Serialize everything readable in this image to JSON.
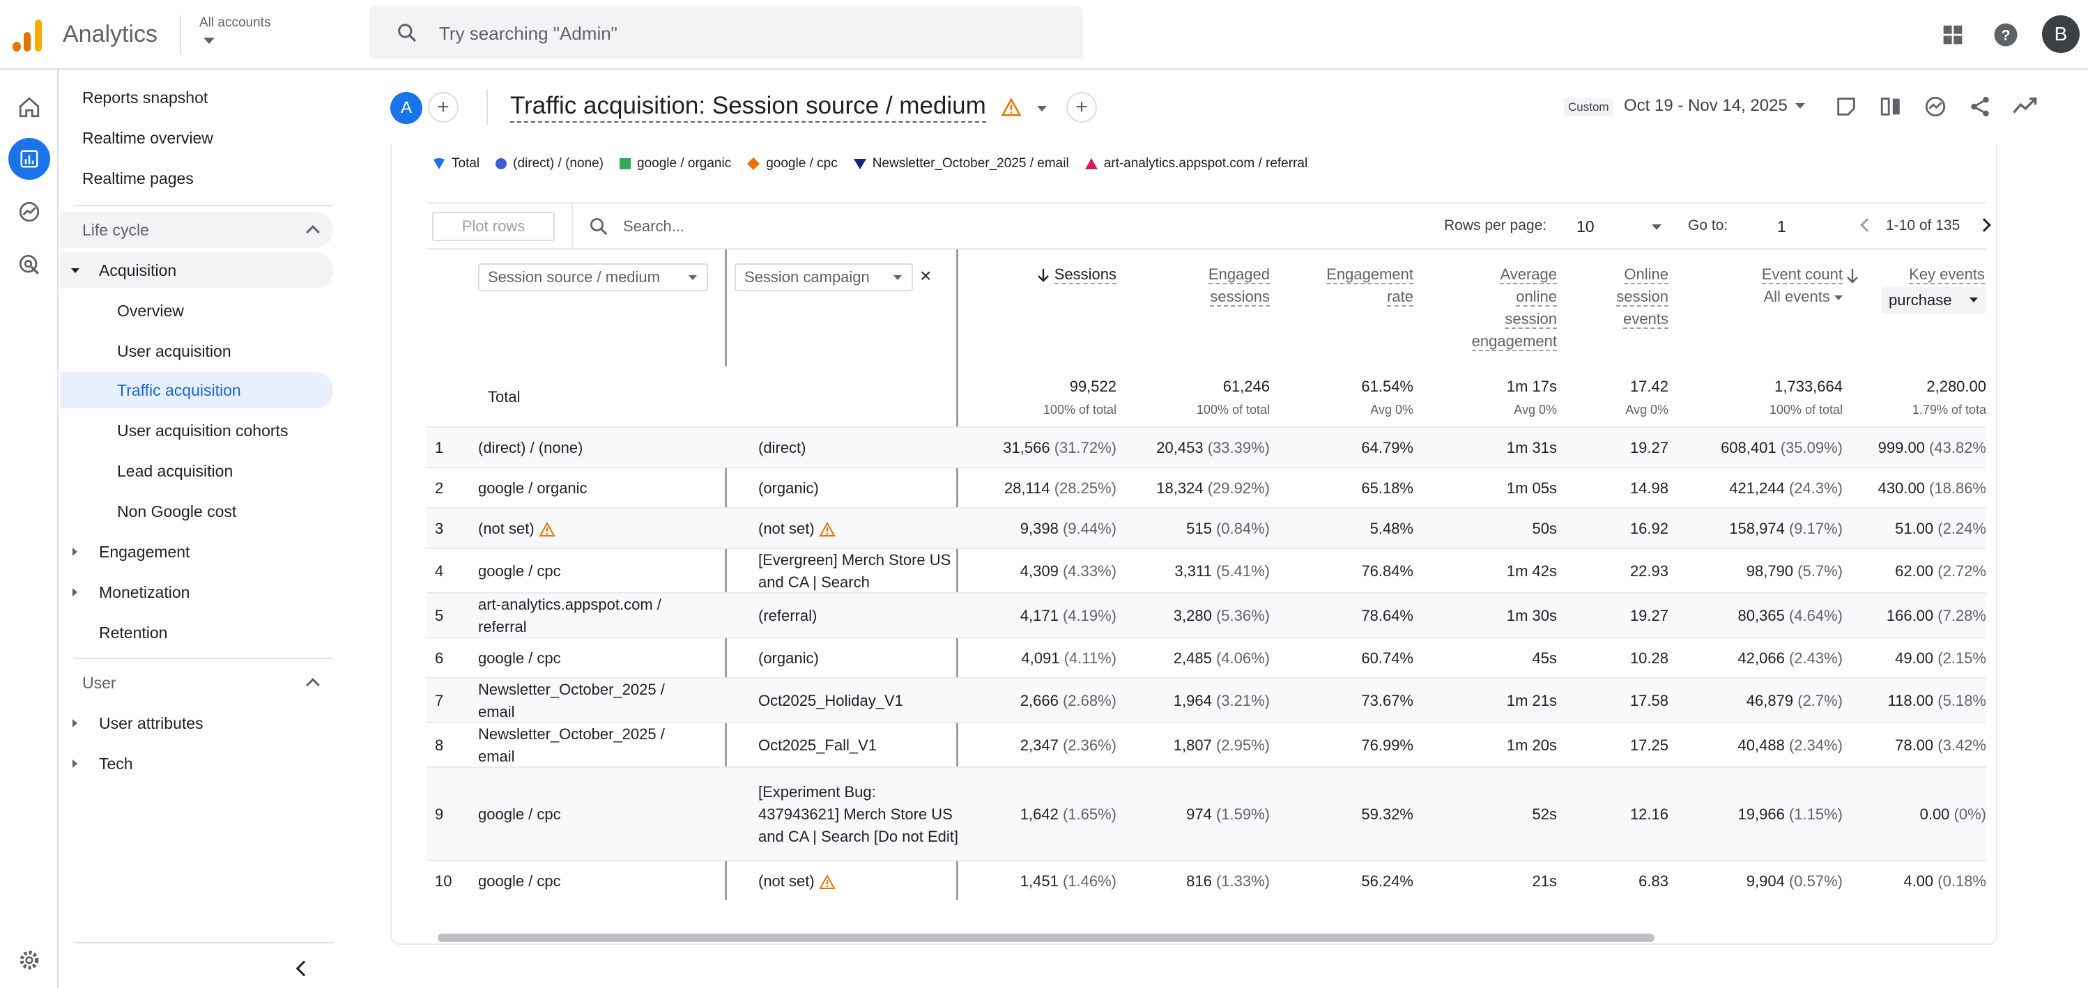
{
  "app": {
    "title": "Analytics",
    "account_label": "All accounts",
    "search_placeholder": "Try searching \"Admin\"",
    "avatar_letter": "B"
  },
  "nav": {
    "items": [
      {
        "label": "Reports snapshot"
      },
      {
        "label": "Realtime overview"
      },
      {
        "label": "Realtime pages"
      }
    ],
    "lifecycle_section": "Life cycle",
    "acquisition": "Acquisition",
    "acquisition_items": [
      "Overview",
      "User acquisition",
      "Traffic acquisition",
      "User acquisition cohorts",
      "Lead acquisition",
      "Non Google cost"
    ],
    "engagement": "Engagement",
    "monetization": "Monetization",
    "retention": "Retention",
    "user_section": "User",
    "user_attributes": "User attributes",
    "tech": "Tech"
  },
  "report": {
    "comparison_letter": "A",
    "title": "Traffic acquisition: Session source / medium",
    "date_chip": "Custom",
    "date_range": "Oct 19 - Nov 14, 2025"
  },
  "legend": [
    "Total",
    "(direct) / (none)",
    "google / organic",
    "google / cpc",
    "Newsletter_October_2025 / email",
    "art-analytics.appspot.com / referral"
  ],
  "legend_colors": [
    "#4285f4",
    "#3b5bdb",
    "#34a853",
    "#e8710a",
    "#1a237e",
    "#d81b60"
  ],
  "toolbar": {
    "plot_rows": "Plot rows",
    "search_placeholder": "Search...",
    "rows_per_page_label": "Rows per page:",
    "rows_per_page": "10",
    "goto_label": "Go to:",
    "goto_value": "1",
    "range": "1-10 of 135"
  },
  "table": {
    "dim1": "Session source / medium",
    "dim2": "Session campaign",
    "headers": {
      "sessions": "Sessions",
      "engaged1": "Engaged",
      "engaged2": "sessions",
      "rate1": "Engagement",
      "rate2": "rate",
      "avg1": "Average",
      "avg2": "online",
      "avg3": "session",
      "avg4": "engagement",
      "online1": "Online",
      "online2": "session",
      "online3": "events",
      "event1": "Event count",
      "event2": "All events",
      "key1": "Key events",
      "key2": "purchase"
    },
    "total": {
      "label": "Total",
      "sessions": "99,522",
      "sessions_sub": "100% of total",
      "engaged": "61,246",
      "engaged_sub": "100% of total",
      "rate": "61.54%",
      "rate_sub": "Avg 0%",
      "avg": "1m 17s",
      "avg_sub": "Avg 0%",
      "online": "17.42",
      "online_sub": "Avg 0%",
      "events": "1,733,664",
      "events_sub": "100% of total",
      "key": "2,280.00",
      "key_sub": "1.79% of tota"
    },
    "rows": [
      {
        "n": "1",
        "src": "(direct) / (none)",
        "camp": "(direct)",
        "s": "31,566",
        "sp": "(31.72%)",
        "e": "20,453",
        "ep": "(33.39%)",
        "r": "64.79%",
        "a": "1m 31s",
        "o": "19.27",
        "ev": "608,401",
        "evp": "(35.09%)",
        "k": "999.00",
        "kp": "(43.82%"
      },
      {
        "n": "2",
        "src": "google / organic",
        "camp": "(organic)",
        "s": "28,114",
        "sp": "(28.25%)",
        "e": "18,324",
        "ep": "(29.92%)",
        "r": "65.18%",
        "a": "1m 05s",
        "o": "14.98",
        "ev": "421,244",
        "evp": "(24.3%)",
        "k": "430.00",
        "kp": "(18.86%"
      },
      {
        "n": "3",
        "src": "(not set)",
        "camp": "(not set)",
        "s": "9,398",
        "sp": "(9.44%)",
        "e": "515",
        "ep": "(0.84%)",
        "r": "5.48%",
        "a": "50s",
        "o": "16.92",
        "ev": "158,974",
        "evp": "(9.17%)",
        "k": "51.00",
        "kp": "(2.24%"
      },
      {
        "n": "4",
        "src": "google / cpc",
        "camp": "[Evergreen] Merch Store US and CA | Search",
        "s": "4,309",
        "sp": "(4.33%)",
        "e": "3,311",
        "ep": "(5.41%)",
        "r": "76.84%",
        "a": "1m 42s",
        "o": "22.93",
        "ev": "98,790",
        "evp": "(5.7%)",
        "k": "62.00",
        "kp": "(2.72%"
      },
      {
        "n": "5",
        "src": "art-analytics.appspot.com / referral",
        "camp": "(referral)",
        "s": "4,171",
        "sp": "(4.19%)",
        "e": "3,280",
        "ep": "(5.36%)",
        "r": "78.64%",
        "a": "1m 30s",
        "o": "19.27",
        "ev": "80,365",
        "evp": "(4.64%)",
        "k": "166.00",
        "kp": "(7.28%"
      },
      {
        "n": "6",
        "src": "google / cpc",
        "camp": "(organic)",
        "s": "4,091",
        "sp": "(4.11%)",
        "e": "2,485",
        "ep": "(4.06%)",
        "r": "60.74%",
        "a": "45s",
        "o": "10.28",
        "ev": "42,066",
        "evp": "(2.43%)",
        "k": "49.00",
        "kp": "(2.15%"
      },
      {
        "n": "7",
        "src": "Newsletter_October_2025 / email",
        "camp": "Oct2025_Holiday_V1",
        "s": "2,666",
        "sp": "(2.68%)",
        "e": "1,964",
        "ep": "(3.21%)",
        "r": "73.67%",
        "a": "1m 21s",
        "o": "17.58",
        "ev": "46,879",
        "evp": "(2.7%)",
        "k": "118.00",
        "kp": "(5.18%"
      },
      {
        "n": "8",
        "src": "Newsletter_October_2025 / email",
        "camp": "Oct2025_Fall_V1",
        "s": "2,347",
        "sp": "(2.36%)",
        "e": "1,807",
        "ep": "(2.95%)",
        "r": "76.99%",
        "a": "1m 20s",
        "o": "17.25",
        "ev": "40,488",
        "evp": "(2.34%)",
        "k": "78.00",
        "kp": "(3.42%"
      },
      {
        "n": "9",
        "src": "google / cpc",
        "camp": "[Experiment Bug: 437943621] Merch Store US and CA | Search [Do not Edit]",
        "s": "1,642",
        "sp": "(1.65%)",
        "e": "974",
        "ep": "(1.59%)",
        "r": "59.32%",
        "a": "52s",
        "o": "12.16",
        "ev": "19,966",
        "evp": "(1.15%)",
        "k": "0.00",
        "kp": "(0%)"
      },
      {
        "n": "10",
        "src": "google / cpc",
        "camp": "(not set)",
        "s": "1,451",
        "sp": "(1.46%)",
        "e": "816",
        "ep": "(1.33%)",
        "r": "56.24%",
        "a": "21s",
        "o": "6.83",
        "ev": "9,904",
        "evp": "(0.57%)",
        "k": "4.00",
        "kp": "(0.18%"
      }
    ]
  }
}
